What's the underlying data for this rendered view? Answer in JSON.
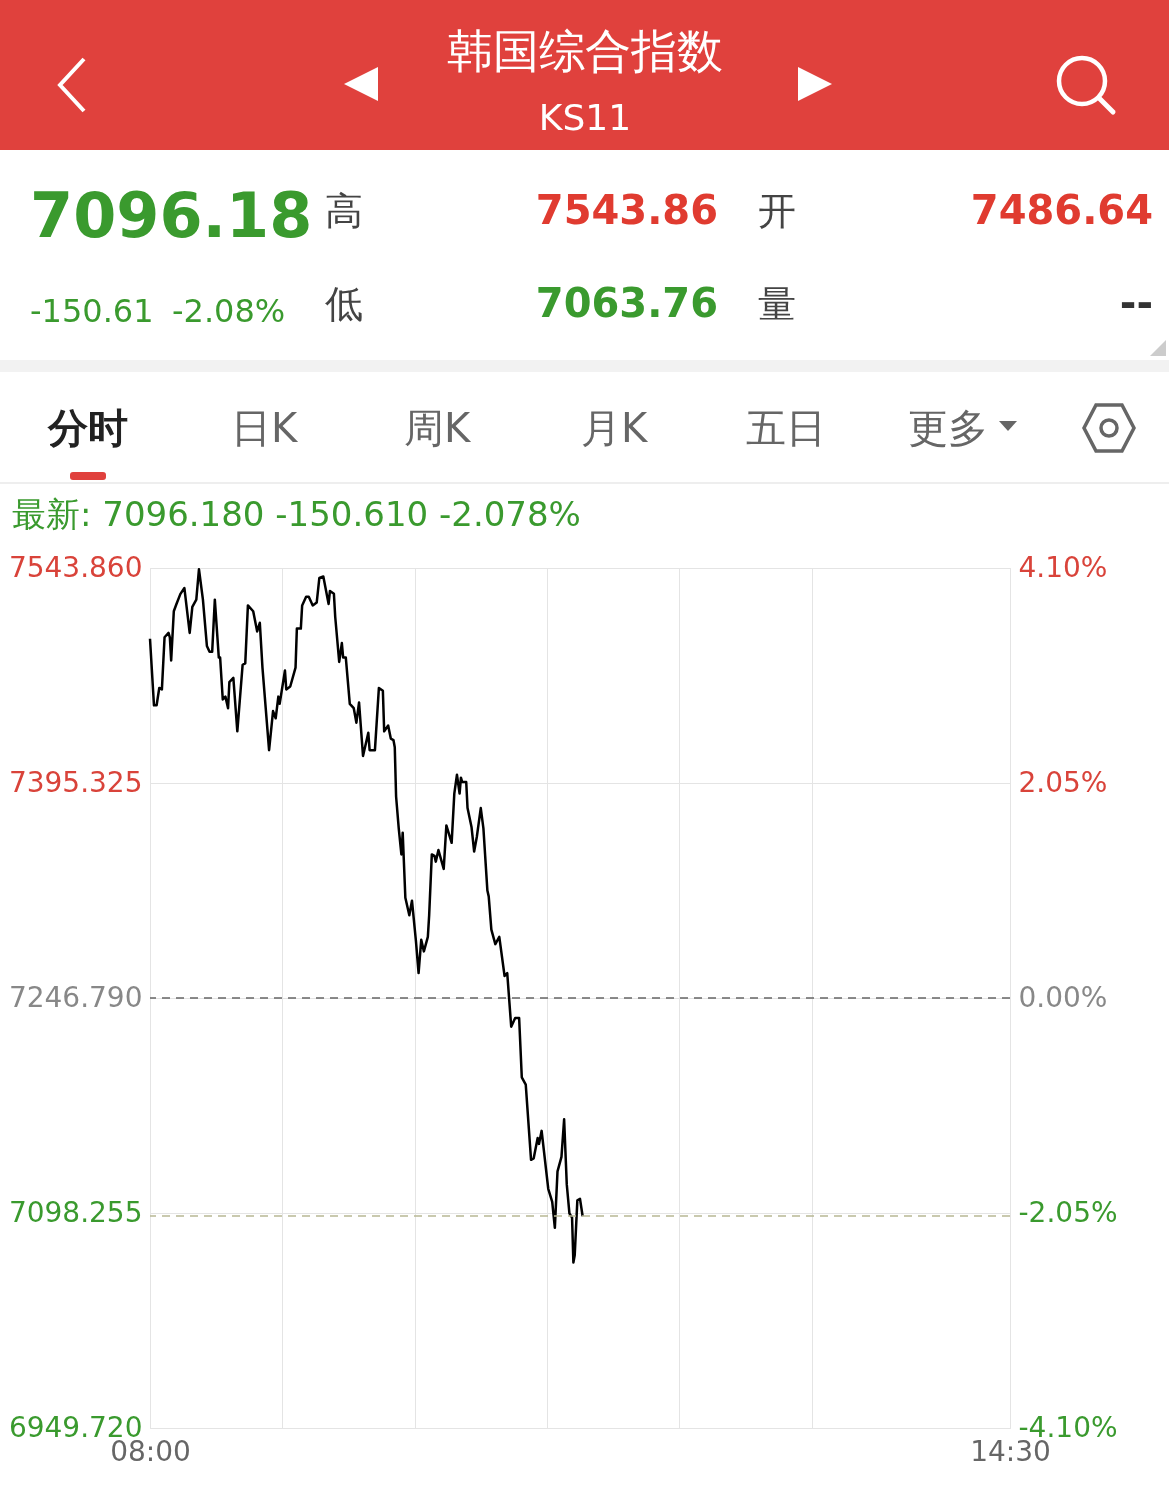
{
  "chart_data": {
    "type": "line",
    "title": "韩国综合指数",
    "subtitle": "KS11",
    "annotations": [
      "7096.18",
      "-150.61",
      "-2.08%",
      "高",
      "7543.86",
      "低",
      "7063.76",
      "开",
      "7486.64",
      "量",
      "--",
      "分时",
      "日K",
      "周K",
      "月K",
      "五日",
      "更多",
      "最新: 7096.180  -150.610  -2.078%"
    ],
    "series": [
      {
        "color": "#000000",
        "x": [
          8.0,
          8.03,
          8.05,
          8.07,
          8.09,
          8.11,
          8.14,
          8.15,
          8.16,
          8.18,
          8.2,
          8.23,
          8.26,
          8.3,
          8.32,
          8.35,
          8.37,
          8.4,
          8.43,
          8.45,
          8.47,
          8.49,
          8.52,
          8.53,
          8.55,
          8.57,
          8.59,
          8.6,
          8.63,
          8.66,
          8.7,
          8.72,
          8.74,
          8.78,
          8.81,
          8.83,
          8.85,
          8.9,
          8.93,
          8.95,
          8.97,
          8.98,
          9.02,
          9.03,
          9.06,
          9.1,
          9.11,
          9.14,
          9.15,
          9.18,
          9.2,
          9.23,
          9.26,
          9.28,
          9.31,
          9.35,
          9.36,
          9.39,
          9.4,
          9.43,
          9.45,
          9.46,
          9.48,
          9.51,
          9.54,
          9.56,
          9.58,
          9.61,
          9.65,
          9.66,
          9.7,
          9.73,
          9.76,
          9.77,
          9.8,
          9.82,
          9.84,
          9.85,
          9.86,
          9.88,
          9.9,
          9.91,
          9.93,
          9.96,
          9.98,
          10.01,
          10.03,
          10.05,
          10.07,
          10.1,
          10.11,
          10.13,
          10.15,
          10.16,
          10.18,
          10.22,
          10.24,
          10.28,
          10.3,
          10.32,
          10.34,
          10.35,
          10.36,
          10.39,
          10.4,
          10.43,
          10.45,
          10.47,
          10.5,
          10.52,
          10.55,
          10.56,
          10.58,
          10.61,
          10.64,
          10.68,
          10.7,
          10.73,
          10.76,
          10.79,
          10.81,
          10.84,
          10.88,
          10.9,
          10.93,
          10.94,
          10.96,
          11.01,
          11.04,
          11.06,
          11.08,
          11.11,
          11.13,
          11.15,
          11.17,
          11.19,
          11.2,
          11.21,
          11.23,
          11.25,
          11.27
        ],
        "values": [
          7495,
          7449,
          7449,
          7461,
          7460,
          7496,
          7499,
          7496,
          7480,
          7514,
          7519,
          7526,
          7530,
          7499,
          7517,
          7522,
          7543,
          7522,
          7490,
          7486,
          7486,
          7522,
          7482,
          7482,
          7453,
          7455,
          7447,
          7465,
          7468,
          7431,
          7477,
          7478,
          7518,
          7514,
          7500,
          7506,
          7475,
          7418,
          7445,
          7440,
          7455,
          7450,
          7473,
          7460,
          7462,
          7475,
          7502,
          7502,
          7518,
          7524,
          7524,
          7518,
          7520,
          7537,
          7538,
          7519,
          7528,
          7526,
          7510,
          7479,
          7492,
          7482,
          7482,
          7450,
          7447,
          7437,
          7451,
          7414,
          7430,
          7418,
          7418,
          7461,
          7459,
          7431,
          7435,
          7426,
          7425,
          7420,
          7386,
          7364,
          7346,
          7361,
          7316,
          7304,
          7314,
          7286,
          7264,
          7287,
          7279,
          7289,
          7304,
          7346,
          7345,
          7341,
          7349,
          7336,
          7366,
          7354,
          7388,
          7401,
          7388,
          7399,
          7396,
          7396,
          7378,
          7365,
          7348,
          7358,
          7378,
          7364,
          7321,
          7317,
          7294,
          7284,
          7289,
          7262,
          7264,
          7227,
          7233,
          7233,
          7192,
          7187,
          7135,
          7136,
          7150,
          7146,
          7155,
          7115,
          7106,
          7088,
          7127,
          7137,
          7163,
          7118,
          7098,
          7095,
          7064,
          7069,
          7107,
          7108,
          7096
        ]
      }
    ],
    "xlim": [
      8,
      14.5
    ],
    "xticks": [
      {
        "value": 8,
        "label": "08:00"
      },
      {
        "value": 9,
        "label": null
      },
      {
        "value": 10,
        "label": null
      },
      {
        "value": 11,
        "label": null
      },
      {
        "value": 12,
        "label": null
      },
      {
        "value": 13,
        "label": null
      },
      {
        "value": 14.5,
        "label": "14:30"
      }
    ],
    "ylim": [
      6949.72,
      7543.86
    ],
    "yticks": [
      {
        "value": 6949.72,
        "label": "6949.720"
      },
      {
        "value": 7098.255,
        "label": "7098.255"
      },
      {
        "value": 7246.79,
        "label": "7246.790"
      },
      {
        "value": 7395.325,
        "label": "7395.325"
      },
      {
        "value": 7543.86,
        "label": "7543.860"
      }
    ],
    "y2lim": [
      -4.1,
      4.1
    ],
    "y2ticks": [
      {
        "value": -4.1,
        "label": "-4.10%"
      },
      {
        "value": -2.05,
        "label": "-2.05%"
      },
      {
        "value": 0,
        "label": "0.00%"
      },
      {
        "value": 2.05,
        "label": "2.05%"
      },
      {
        "value": 4.1,
        "label": "4.10%"
      }
    ],
    "ref_lines": [
      {
        "axis": "y2",
        "value": 0,
        "color": "#666666",
        "line_style": "dashed"
      },
      {
        "axis": "y",
        "value": 7096.18,
        "color": "#b8b894",
        "line_style": "dashed"
      }
    ],
    "grid": true
  }
}
